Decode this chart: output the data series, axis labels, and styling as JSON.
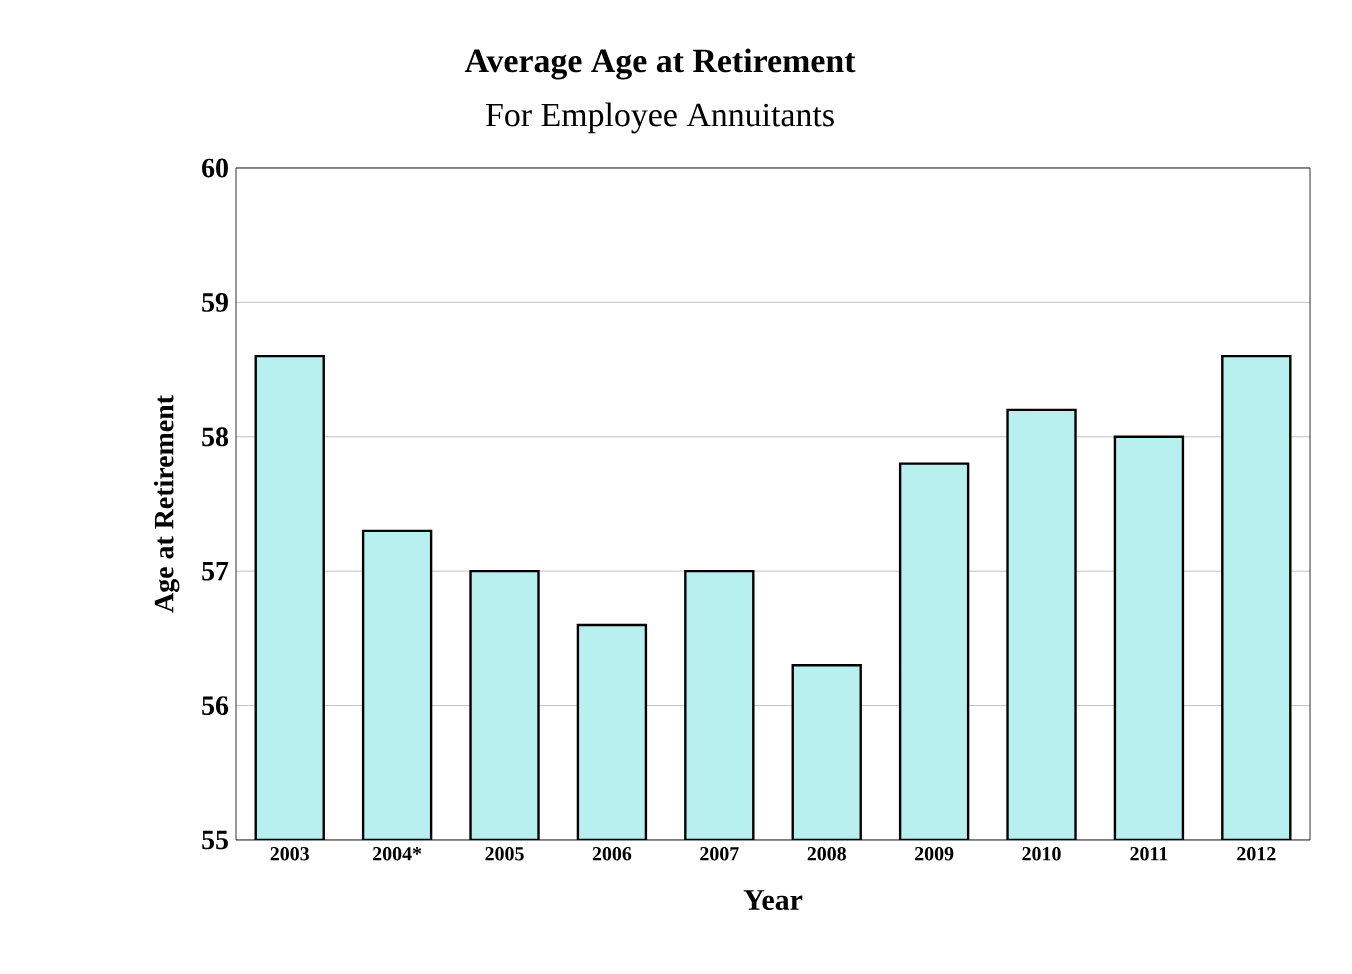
{
  "chart_data": {
    "type": "bar",
    "title": "Average Age at Retirement",
    "subtitle": "For Employee Annuitants",
    "xlabel": "Year",
    "ylabel": "Age at Retirement",
    "categories": [
      "2003",
      "2004*",
      "2005",
      "2006",
      "2007",
      "2008",
      "2009",
      "2010",
      "2011",
      "2012"
    ],
    "values": [
      58.6,
      57.3,
      57.0,
      56.6,
      57.0,
      56.3,
      57.8,
      58.2,
      58.0,
      58.6
    ],
    "color": "#b8f0f0",
    "ylim": [
      55,
      60
    ],
    "yticks": [
      55,
      56,
      57,
      58,
      59,
      60
    ],
    "grid": "y"
  }
}
